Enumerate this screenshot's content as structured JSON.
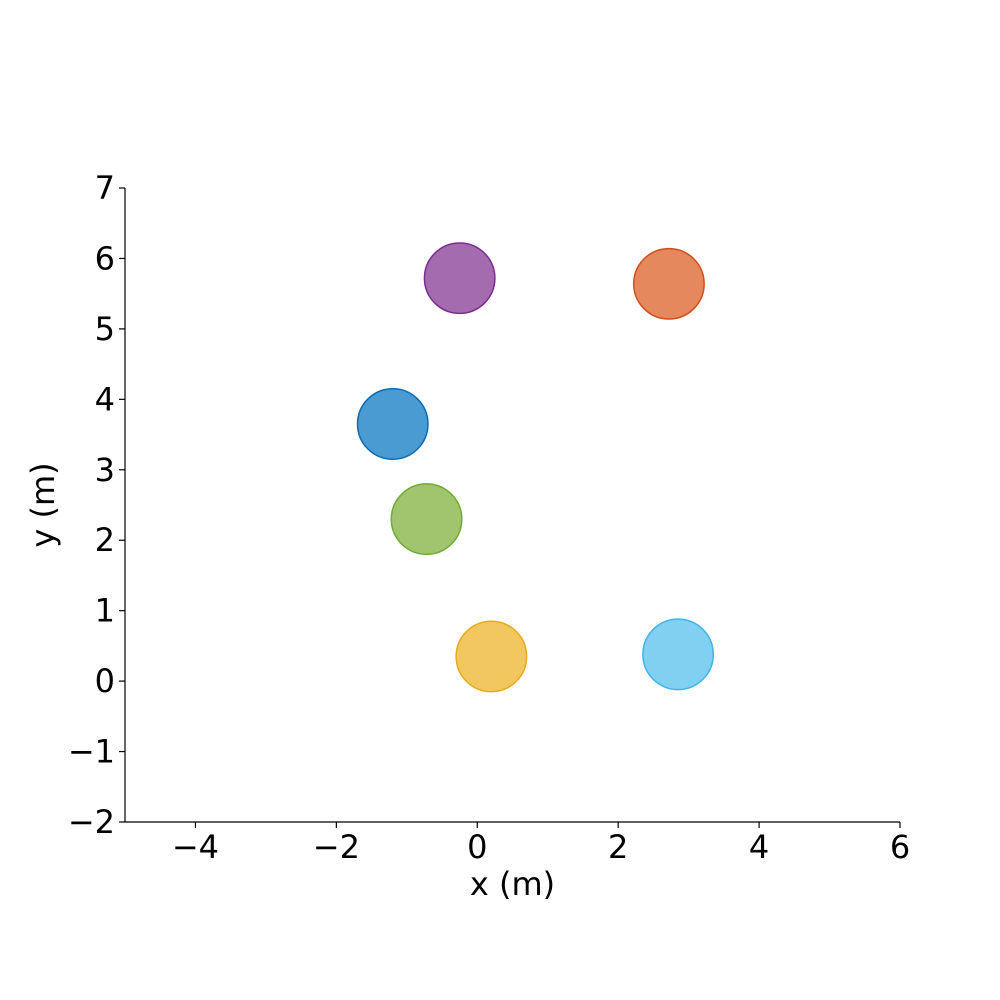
{
  "chart_data": {
    "type": "scatter",
    "title": "",
    "xlabel": "x (m)",
    "ylabel": "y (m)",
    "xlim": [
      -5,
      6
    ],
    "ylim": [
      -2,
      7
    ],
    "xticks": [
      -4,
      -2,
      0,
      2,
      4,
      6
    ],
    "yticks": [
      -2,
      -1,
      0,
      1,
      2,
      3,
      4,
      5,
      6,
      7
    ],
    "xtick_labels": [
      "−4",
      "−2",
      "0",
      "2",
      "4",
      "6"
    ],
    "ytick_labels": [
      "−2",
      "−1",
      "0",
      "1",
      "2",
      "3",
      "4",
      "5",
      "6",
      "7"
    ],
    "grid": false,
    "legend": "none",
    "marker_radius": 0.5,
    "points": [
      {
        "x": -0.25,
        "y": 5.72,
        "fill": "#a46caf",
        "stroke": "#7b2d8e"
      },
      {
        "x": 2.72,
        "y": 5.64,
        "fill": "#e5885e",
        "stroke": "#d14f1a"
      },
      {
        "x": -1.2,
        "y": 3.65,
        "fill": "#4a9bd1",
        "stroke": "#0b6bb3"
      },
      {
        "x": -0.72,
        "y": 2.3,
        "fill": "#a1c56e",
        "stroke": "#6faa33"
      },
      {
        "x": 0.2,
        "y": 0.35,
        "fill": "#f2c75f",
        "stroke": "#e6aa1e"
      },
      {
        "x": 2.85,
        "y": 0.38,
        "fill": "#82d0f1",
        "stroke": "#3fb4e6"
      }
    ]
  }
}
